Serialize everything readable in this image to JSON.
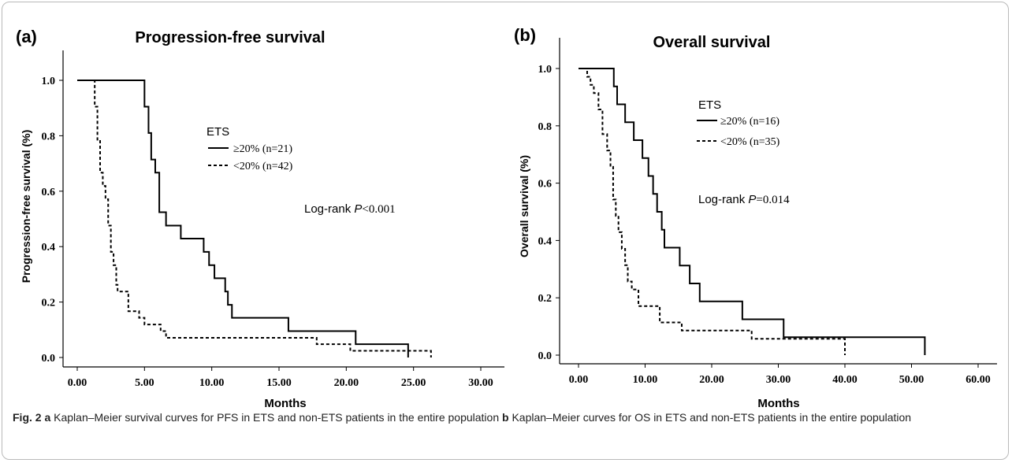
{
  "caption": {
    "fig_label": "Fig. 2",
    "a_label": "a",
    "a_text": "Kaplan–Meier survival curves for PFS in ETS and non-ETS patients in the entire population",
    "b_label": "b",
    "b_text": "Kaplan–Meier curves for OS in ETS and non-ETS patients in the entire population"
  },
  "chart_data": [
    {
      "type": "line",
      "panel_label": "(a)",
      "title": "Progression-free survival",
      "xlabel": "Months",
      "ylabel": "Progression-free survival (%)",
      "xlim": [
        0,
        30
      ],
      "ylim": [
        0,
        1.0
      ],
      "xticks": [
        0,
        5,
        10,
        15,
        20,
        25,
        30
      ],
      "xtick_labels": [
        "0.00",
        "5.00",
        "10.00",
        "15.00",
        "20.00",
        "25.00",
        "30.00"
      ],
      "yticks": [
        0,
        0.2,
        0.4,
        0.6,
        0.8,
        1.0
      ],
      "ytick_labels": [
        "0.0",
        "0.2",
        "0.4",
        "0.6",
        "0.8",
        "1.0"
      ],
      "legend_title": "ETS",
      "legend_position": "upper-middle",
      "annotation": {
        "prefix": "Log-rank ",
        "p": "P",
        "rest": "<0.001"
      },
      "series": [
        {
          "name": "≥20% (n=21)",
          "style": "solid",
          "x": [
            0,
            5.0,
            5.3,
            5.5,
            5.8,
            6.1,
            6.6,
            7.7,
            9.4,
            9.8,
            10.2,
            11.0,
            11.2,
            11.5,
            15.7,
            20.7,
            24.6,
            24.6
          ],
          "y": [
            1.0,
            0.905,
            0.81,
            0.714,
            0.667,
            0.524,
            0.476,
            0.429,
            0.381,
            0.333,
            0.286,
            0.238,
            0.19,
            0.143,
            0.095,
            0.048,
            0.048,
            0.0
          ]
        },
        {
          "name": "<20% (n=42)",
          "style": "dashed",
          "x": [
            0,
            1.3,
            1.5,
            1.7,
            1.9,
            2.1,
            2.3,
            2.5,
            2.7,
            2.9,
            3.0,
            3.8,
            4.6,
            5.0,
            5.6,
            6.2,
            6.6,
            15.7,
            17.8,
            20.3,
            24.6,
            26.3
          ],
          "y": [
            1.0,
            0.905,
            0.786,
            0.667,
            0.619,
            0.571,
            0.476,
            0.381,
            0.333,
            0.262,
            0.238,
            0.167,
            0.143,
            0.119,
            0.119,
            0.095,
            0.071,
            0.071,
            0.048,
            0.024,
            0.024,
            0.0
          ]
        }
      ]
    },
    {
      "type": "line",
      "panel_label": "(b)",
      "title": "Overall survival",
      "xlabel": "Months",
      "ylabel": "Overall survival (%)",
      "xlim": [
        0,
        60
      ],
      "ylim": [
        0,
        1.0
      ],
      "xticks": [
        0,
        10,
        20,
        30,
        40,
        50,
        60
      ],
      "xtick_labels": [
        "0.00",
        "10.00",
        "20.00",
        "30.00",
        "40.00",
        "50.00",
        "60.00"
      ],
      "yticks": [
        0,
        0.2,
        0.4,
        0.6,
        0.8,
        1.0
      ],
      "ytick_labels": [
        "0.0",
        "0.2",
        "0.4",
        "0.6",
        "0.8",
        "1.0"
      ],
      "legend_title": "ETS",
      "legend_position": "upper-middle",
      "annotation": {
        "prefix": "Log-rank ",
        "p": "P",
        "rest": "=0.014"
      },
      "series": [
        {
          "name": "≥20% (n=16)",
          "style": "solid",
          "x": [
            0,
            5.3,
            5.8,
            7.0,
            8.3,
            9.6,
            10.5,
            11.2,
            11.8,
            12.5,
            12.9,
            15.2,
            16.7,
            18.2,
            24.6,
            30.8,
            52.0,
            52.0
          ],
          "y": [
            1.0,
            0.9375,
            0.875,
            0.8125,
            0.75,
            0.6875,
            0.625,
            0.5625,
            0.5,
            0.4375,
            0.375,
            0.3125,
            0.25,
            0.1875,
            0.125,
            0.0625,
            0.0625,
            0.0
          ],
          "point_ids": [
            "start",
            "p1",
            "p2",
            "p3",
            "p4",
            "p5",
            "p6",
            "p7",
            "p8",
            "p9",
            "p10",
            "p11",
            "p12",
            "p13",
            "p14",
            "p15",
            "end",
            "drop"
          ]
        },
        {
          "name": "<20% (n=35)",
          "style": "dashed",
          "x": [
            0,
            1.3,
            1.8,
            2.3,
            3.0,
            3.6,
            4.3,
            4.8,
            5.2,
            5.6,
            6.0,
            6.5,
            7.0,
            7.4,
            8.0,
            8.5,
            9.0,
            11.0,
            12.2,
            13.5,
            15.5,
            26.0,
            40.0,
            40.0
          ],
          "y": [
            1.0,
            0.971,
            0.943,
            0.914,
            0.857,
            0.771,
            0.714,
            0.657,
            0.543,
            0.486,
            0.429,
            0.371,
            0.314,
            0.257,
            0.229,
            0.229,
            0.171,
            0.171,
            0.114,
            0.114,
            0.086,
            0.057,
            0.057,
            0.0
          ]
        }
      ]
    }
  ]
}
